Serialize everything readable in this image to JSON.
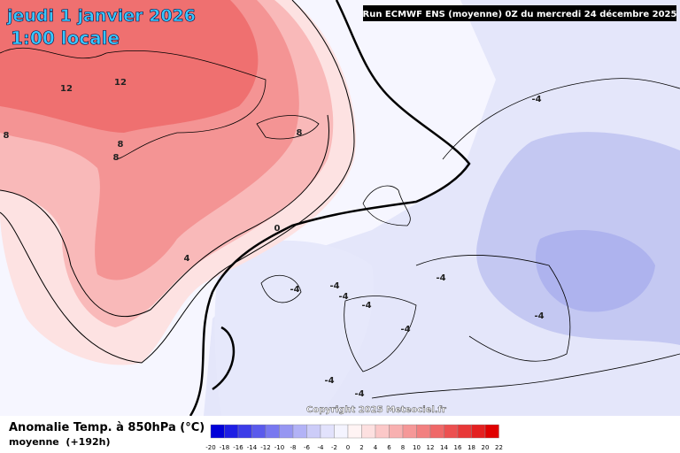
{
  "header": {
    "date": "jeudi 1 janvier 2026",
    "time": "1:00 locale",
    "run": "Run ECMWF ENS (moyenne) 0Z du mercredi 24 décembre 2025"
  },
  "map": {
    "copyright": "Copyright 2025 Meteociel.fr",
    "contour_labels": [
      "12",
      "12",
      "8",
      "8",
      "8",
      "8",
      "0",
      "4",
      "-4",
      "-4",
      "-4",
      "-4",
      "-4",
      "-4",
      "-4",
      "-4",
      "-4",
      "-4"
    ]
  },
  "legend": {
    "title": "Anomalie Temp. à 850hPa (°C)",
    "subtitle": "moyenne  (+192h)",
    "labels": [
      -20,
      -18,
      -16,
      -14,
      -12,
      -10,
      -8,
      -6,
      -4,
      -2,
      0,
      2,
      4,
      6,
      8,
      10,
      12,
      14,
      16,
      18,
      20,
      22
    ],
    "colors": [
      "#0000d8",
      "#1e1ee4",
      "#3c3ce8",
      "#5a5aec",
      "#7878f0",
      "#9696f2",
      "#b2b2f6",
      "#ccccf8",
      "#e2e2fc",
      "#f4f4ff",
      "#fff4f4",
      "#fde0e0",
      "#fbc8c8",
      "#f8b0b0",
      "#f59898",
      "#f28080",
      "#ef6868",
      "#ec5050",
      "#e83838",
      "#e42020",
      "#e00000"
    ]
  }
}
